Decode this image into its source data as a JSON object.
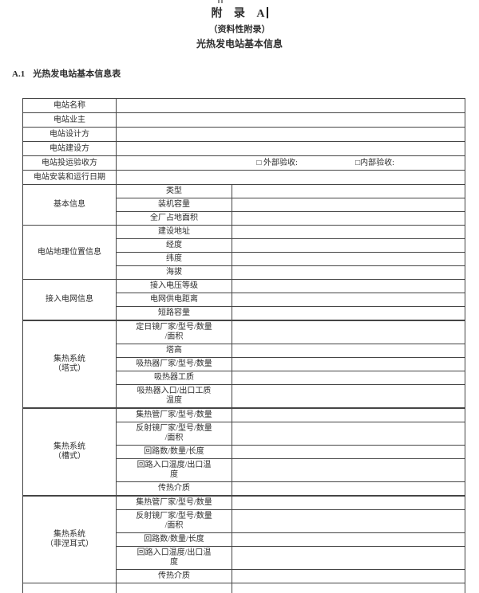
{
  "page": {
    "appendix_label": "附 录 A",
    "appendix_note": "（资料性附录）",
    "appendix_title": "光热发电站基本信息",
    "section_number": "A.1",
    "section_title": "光热发电站基本信息表"
  },
  "form": {
    "simple_rows": [
      {
        "label": "电站名称",
        "value": ""
      },
      {
        "label": "电站业主",
        "value": ""
      },
      {
        "label": "电站设计方",
        "value": ""
      },
      {
        "label": "电站建设方",
        "value": ""
      },
      {
        "label": "电站投运验收方",
        "checkbox_options": [
          "□ 外部验收:",
          "□内部验收:"
        ]
      },
      {
        "label": "电站安装和运行日期",
        "value": ""
      }
    ],
    "groups": [
      {
        "label": "基本信息",
        "rows": [
          "类型",
          "装机容量",
          "全厂占地面积"
        ]
      },
      {
        "label": "电站地理位置信息",
        "rows": [
          "建设地址",
          "经度",
          "纬度",
          "海拔"
        ]
      },
      {
        "label": "接入电网信息",
        "rows": [
          "接入电压等级",
          "电网供电距离",
          "短路容量"
        ]
      },
      {
        "label": "集热系统\n（塔式）",
        "rows": [
          "定日镜厂家/型号/数量\n/面积",
          "塔高",
          "吸热器厂家/型号/数量",
          "吸热器工质",
          "吸热器入口/出口工质\n温度"
        ]
      },
      {
        "label": "集热系统\n（槽式）",
        "rows": [
          "集热管厂家/型号/数量",
          "反射镜厂家/型号/数量\n/面积",
          "回路数/数量/长度",
          "回路入口温度/出口温\n度",
          "传热介质"
        ]
      },
      {
        "label": "集热系统\n（菲涅耳式）",
        "rows": [
          "集热管厂家/型号/数量",
          "反射镜厂家/型号/数量\n/面积",
          "回路数/数量/长度",
          "回路入口温度/出口温\n度",
          "传热介质"
        ]
      }
    ]
  }
}
